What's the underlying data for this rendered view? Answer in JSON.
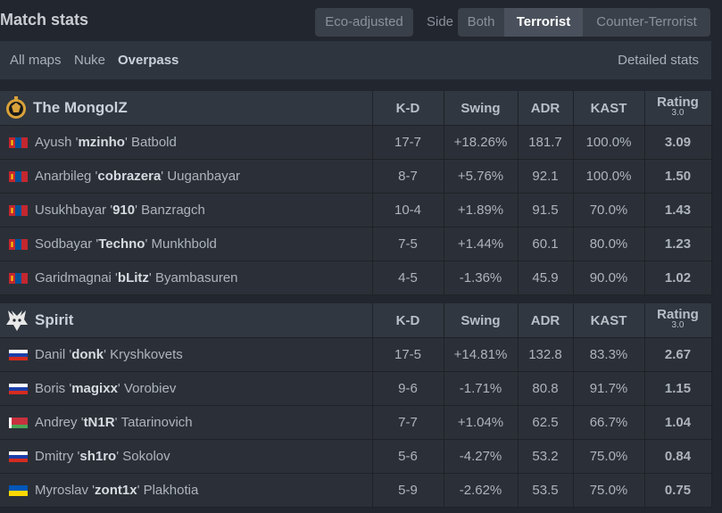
{
  "header": {
    "title": "Match stats"
  },
  "filters": {
    "eco": "Eco-adjusted",
    "side_label": "Side",
    "side_options": [
      "Both",
      "Terrorist",
      "Counter-Terrorist"
    ],
    "side_selected": "Terrorist"
  },
  "maps": {
    "items": [
      "All maps",
      "Nuke",
      "Overpass"
    ],
    "selected": "Overpass",
    "detailed": "Detailed stats"
  },
  "columns": {
    "kd": "K-D",
    "swing": "Swing",
    "adr": "ADR",
    "kast": "KAST",
    "rating": "Rating",
    "rating_sub": "3.0"
  },
  "teams": [
    {
      "name": "The MongolZ",
      "players": [
        {
          "first": "Ayush",
          "nick": "mzinho",
          "last": "Batbold",
          "flag": "mn",
          "kd": "17-7",
          "swing": "+18.26%",
          "adr": "181.7",
          "kast": "100.0%",
          "rating": "3.09"
        },
        {
          "first": "Anarbileg",
          "nick": "cobrazera",
          "last": "Uuganbayar",
          "flag": "mn",
          "kd": "8-7",
          "swing": "+5.76%",
          "adr": "92.1",
          "kast": "100.0%",
          "rating": "1.50"
        },
        {
          "first": "Usukhbayar",
          "nick": "910",
          "last": "Banzragch",
          "flag": "mn",
          "kd": "10-4",
          "swing": "+1.89%",
          "adr": "91.5",
          "kast": "70.0%",
          "rating": "1.43"
        },
        {
          "first": "Sodbayar",
          "nick": "Techno",
          "last": "Munkhbold",
          "flag": "mn",
          "kd": "7-5",
          "swing": "+1.44%",
          "adr": "60.1",
          "kast": "80.0%",
          "rating": "1.23"
        },
        {
          "first": "Garidmagnai",
          "nick": "bLitz",
          "last": "Byambasuren",
          "flag": "mn",
          "kd": "4-5",
          "swing": "-1.36%",
          "adr": "45.9",
          "kast": "90.0%",
          "rating": "1.02"
        }
      ]
    },
    {
      "name": "Spirit",
      "players": [
        {
          "first": "Danil",
          "nick": "donk",
          "last": "Kryshkovets",
          "flag": "ru",
          "kd": "17-5",
          "swing": "+14.81%",
          "adr": "132.8",
          "kast": "83.3%",
          "rating": "2.67"
        },
        {
          "first": "Boris",
          "nick": "magixx",
          "last": "Vorobiev",
          "flag": "ru",
          "kd": "9-6",
          "swing": "-1.71%",
          "adr": "80.8",
          "kast": "91.7%",
          "rating": "1.15"
        },
        {
          "first": "Andrey",
          "nick": "tN1R",
          "last": "Tatarinovich",
          "flag": "by",
          "kd": "7-7",
          "swing": "+1.04%",
          "adr": "62.5",
          "kast": "66.7%",
          "rating": "1.04"
        },
        {
          "first": "Dmitry",
          "nick": "sh1ro",
          "last": "Sokolov",
          "flag": "ru",
          "kd": "5-6",
          "swing": "-4.27%",
          "adr": "53.2",
          "kast": "75.0%",
          "rating": "0.84"
        },
        {
          "first": "Myroslav",
          "nick": "zont1x",
          "last": "Plakhotia",
          "flag": "ua",
          "kd": "5-9",
          "swing": "-2.62%",
          "adr": "53.5",
          "kast": "75.0%",
          "rating": "0.75"
        }
      ]
    }
  ],
  "icons": {
    "mongolz_logo": "mongolz-logo-icon",
    "spirit_logo": "spirit-dragon-icon"
  }
}
